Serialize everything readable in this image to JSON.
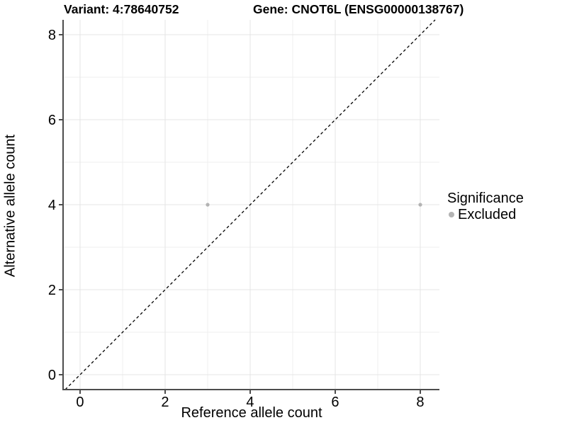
{
  "chart_data": {
    "type": "scatter",
    "title_left": "Variant: 4:78640752",
    "title_right": "Gene: CNOT6L (ENSG00000138767)",
    "xlabel": "Reference allele count",
    "ylabel": "Alternative allele count",
    "xlim": [
      -0.383,
      8.45
    ],
    "ylim": [
      -0.35,
      8.35
    ],
    "xticks": [
      0,
      2,
      4,
      6,
      8
    ],
    "yticks": [
      0,
      2,
      4,
      6,
      8
    ],
    "xminor": [
      1,
      3,
      5,
      7
    ],
    "yminor": [
      1,
      3,
      5,
      7
    ],
    "grid": true,
    "points": [
      {
        "x": 3,
        "y": 4,
        "significance": "Excluded"
      },
      {
        "x": 8,
        "y": 4,
        "significance": "Excluded"
      }
    ],
    "identity_line": {
      "equation": "y = x",
      "style": "dashed",
      "color": "#000000"
    },
    "legend": {
      "title": "Significance",
      "position": "right",
      "items": [
        {
          "label": "Excluded",
          "color": "#b3b3b3"
        }
      ]
    },
    "colors": {
      "background": "#ffffff",
      "axis_line": "#4d4d4d",
      "grid_major": "#e4e4e4",
      "grid_minor": "#efefef",
      "tick_text": "#000000",
      "point_excluded": "#b3b3b3"
    }
  }
}
